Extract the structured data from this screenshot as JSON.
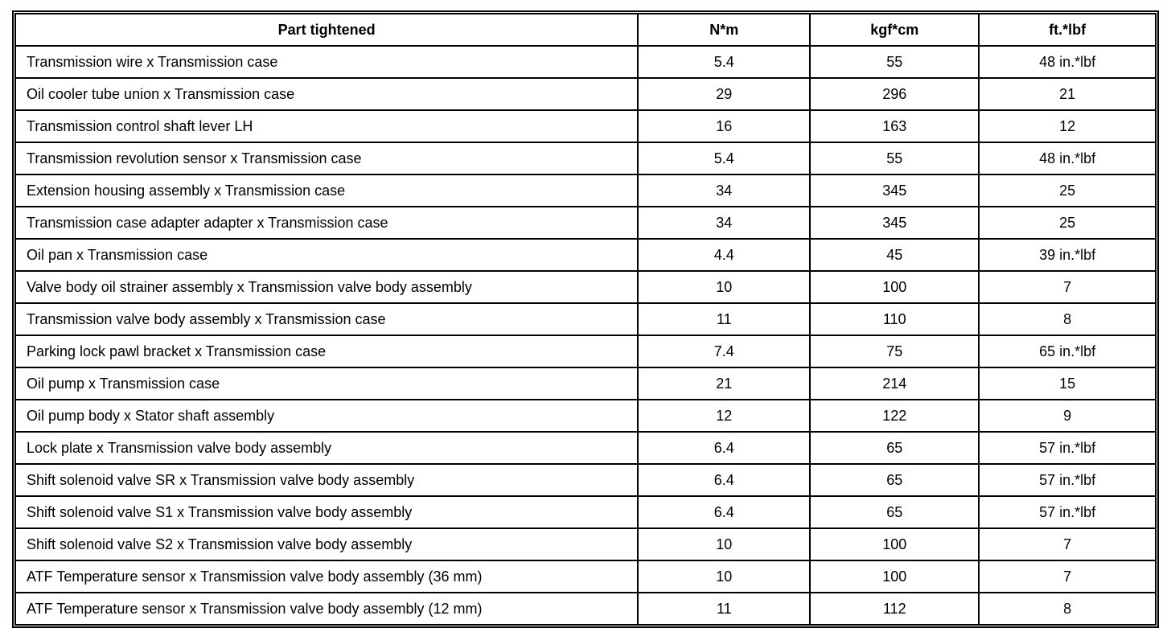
{
  "colors": {
    "border": "#000000",
    "text": "#000000",
    "background": "#ffffff"
  },
  "table": {
    "columns": [
      "Part tightened",
      "N*m",
      "kgf*cm",
      "ft.*lbf"
    ],
    "rows": [
      {
        "part": "Transmission wire x Transmission case",
        "nm": "5.4",
        "kgfcm": "55",
        "ftlbf": "48 in.*lbf"
      },
      {
        "part": "Oil cooler tube union x Transmission case",
        "nm": "29",
        "kgfcm": "296",
        "ftlbf": "21"
      },
      {
        "part": "Transmission control shaft lever LH",
        "nm": "16",
        "kgfcm": "163",
        "ftlbf": "12"
      },
      {
        "part": "Transmission revolution sensor x Transmission case",
        "nm": "5.4",
        "kgfcm": "55",
        "ftlbf": "48 in.*lbf"
      },
      {
        "part": "Extension housing assembly x Transmission case",
        "nm": "34",
        "kgfcm": "345",
        "ftlbf": "25"
      },
      {
        "part": "Transmission case adapter adapter x Transmission case",
        "nm": "34",
        "kgfcm": "345",
        "ftlbf": "25"
      },
      {
        "part": "Oil pan x Transmission case",
        "nm": "4.4",
        "kgfcm": "45",
        "ftlbf": "39 in.*lbf"
      },
      {
        "part": "Valve body oil strainer assembly x Transmission valve body assembly",
        "nm": "10",
        "kgfcm": "100",
        "ftlbf": "7"
      },
      {
        "part": "Transmission valve body assembly x Transmission case",
        "nm": "11",
        "kgfcm": "110",
        "ftlbf": "8"
      },
      {
        "part": "Parking lock pawl bracket x Transmission case",
        "nm": "7.4",
        "kgfcm": "75",
        "ftlbf": "65 in.*lbf"
      },
      {
        "part": "Oil pump x Transmission case",
        "nm": "21",
        "kgfcm": "214",
        "ftlbf": "15"
      },
      {
        "part": "Oil pump body x Stator shaft assembly",
        "nm": "12",
        "kgfcm": "122",
        "ftlbf": "9"
      },
      {
        "part": "Lock plate x Transmission valve body assembly",
        "nm": "6.4",
        "kgfcm": "65",
        "ftlbf": "57 in.*lbf"
      },
      {
        "part": "Shift solenoid valve SR x Transmission valve body assembly",
        "nm": "6.4",
        "kgfcm": "65",
        "ftlbf": "57 in.*lbf"
      },
      {
        "part": "Shift solenoid valve S1 x Transmission valve body assembly",
        "nm": "6.4",
        "kgfcm": "65",
        "ftlbf": "57 in.*lbf"
      },
      {
        "part": "Shift solenoid valve S2 x Transmission valve body assembly",
        "nm": "10",
        "kgfcm": "100",
        "ftlbf": "7"
      },
      {
        "part": "ATF Temperature sensor x Transmission valve body assembly (36 mm)",
        "nm": "10",
        "kgfcm": "100",
        "ftlbf": "7"
      },
      {
        "part": "ATF Temperature sensor x Transmission valve body assembly (12 mm)",
        "nm": "11",
        "kgfcm": "112",
        "ftlbf": "8"
      }
    ]
  }
}
